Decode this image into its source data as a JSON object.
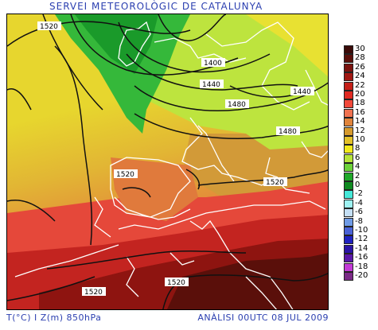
{
  "header": {
    "title": "SERVEI METEOROLÒGIC DE CATALUNYA"
  },
  "footer": {
    "left": "T(°C) I Z(m) 850hPa",
    "right": "ANÀLISI 00UTC 08 JUL 2009"
  },
  "legend": {
    "items": [
      {
        "label": "30",
        "color": "#3a0a08"
      },
      {
        "label": "28",
        "color": "#5a0f0a"
      },
      {
        "label": "26",
        "color": "#7a120e"
      },
      {
        "label": "24",
        "color": "#a01712"
      },
      {
        "label": "22",
        "color": "#c41f18"
      },
      {
        "label": "20",
        "color": "#e02a22"
      },
      {
        "label": "18",
        "color": "#f2493a"
      },
      {
        "label": "16",
        "color": "#f07250"
      },
      {
        "label": "14",
        "color": "#e0843c"
      },
      {
        "label": "12",
        "color": "#d69a2e"
      },
      {
        "label": "10",
        "color": "#e3c12a"
      },
      {
        "label": "8",
        "color": "#f2ea1c"
      },
      {
        "label": "6",
        "color": "#b6e43a"
      },
      {
        "label": "4",
        "color": "#6cd23a"
      },
      {
        "label": "2",
        "color": "#1fa82a"
      },
      {
        "label": "0",
        "color": "#0f8a20"
      },
      {
        "label": "-2",
        "color": "#46e8d8"
      },
      {
        "label": "-4",
        "color": "#9ef2f2"
      },
      {
        "label": "-6",
        "color": "#c4dff4"
      },
      {
        "label": "-8",
        "color": "#6f9be6"
      },
      {
        "label": "-10",
        "color": "#4a62d6"
      },
      {
        "label": "-12",
        "color": "#1f22c0"
      },
      {
        "label": "-14",
        "color": "#2a14a6"
      },
      {
        "label": "-16",
        "color": "#5a18a8"
      },
      {
        "label": "-18",
        "color": "#c23ad6"
      },
      {
        "label": "-20",
        "color": "#7a2a86"
      }
    ]
  },
  "contours": {
    "labels": [
      "1520",
      "1400",
      "1440",
      "1480",
      "1440",
      "1480",
      "1520",
      "1520",
      "1520",
      "1520"
    ]
  }
}
